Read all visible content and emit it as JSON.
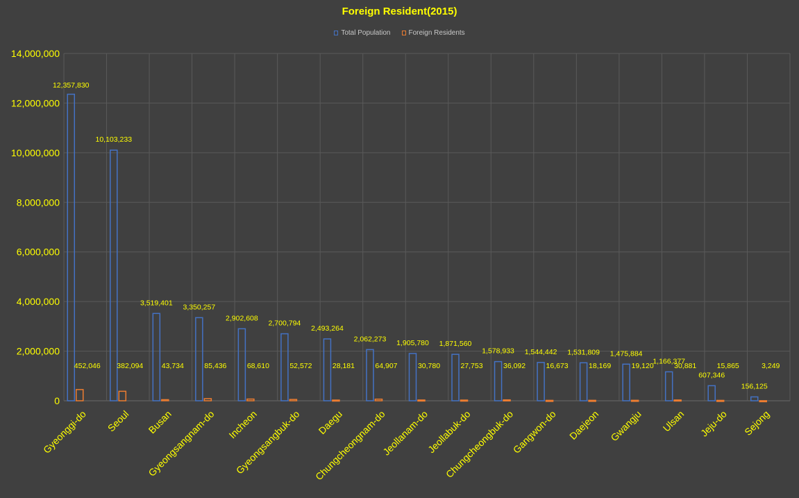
{
  "chart_data": {
    "type": "bar",
    "title": "Foreign Resident(2015)",
    "xlabel": "",
    "ylabel": "",
    "ylim": [
      0,
      14000000
    ],
    "yticks": [
      0,
      2000000,
      4000000,
      6000000,
      8000000,
      10000000,
      12000000,
      14000000
    ],
    "ytick_labels": [
      "0",
      "2,000,000",
      "4,000,000",
      "6,000,000",
      "8,000,000",
      "10,000,000",
      "12,000,000",
      "14,000,000"
    ],
    "grid": true,
    "legend_position": "top",
    "categories": [
      "Gyeonggi-do",
      "Seoul",
      "Busan",
      "Gyeongsangnam-do",
      "Incheon",
      "Gyeongsangbuk-do",
      "Daegu",
      "Chungcheongnam-do",
      "Jeollanam-do",
      "Jeollabuk-do",
      "Chungcheongbuk-do",
      "Gangwon-do",
      "Daejeon",
      "Gwangju",
      "Ulsan",
      "Jeju-do",
      "Sejong"
    ],
    "series": [
      {
        "name": "Total Population",
        "color": "#4472c4",
        "values": [
          12357830,
          10103233,
          3519401,
          3350257,
          2902608,
          2700794,
          2493264,
          2062273,
          1905780,
          1871560,
          1578933,
          1544442,
          1531809,
          1475884,
          1166377,
          607346,
          156125
        ],
        "labels": [
          "12,357,830",
          "10,103,233",
          "3,519,401",
          "3,350,257",
          "2,902,608",
          "2,700,794",
          "2,493,264",
          "2,062,273",
          "1,905,780",
          "1,871,560",
          "1,578,933",
          "1,544,442",
          "1,531,809",
          "1,475,884",
          "1,166,377",
          "607,346",
          "156,125"
        ]
      },
      {
        "name": "Foreign Residents",
        "color": "#ed7d31",
        "values": [
          452046,
          382094,
          43734,
          85436,
          68610,
          52572,
          28181,
          64907,
          30780,
          27753,
          36092,
          16673,
          18169,
          19120,
          30881,
          15865,
          3249
        ],
        "labels": [
          "452,046",
          "382,094",
          "43,734",
          "85,436",
          "68,610",
          "52,572",
          "28,181",
          "64,907",
          "30,780",
          "27,753",
          "36,092",
          "16,673",
          "18,169",
          "19,120",
          "30,881",
          "15,865",
          "3,249"
        ]
      }
    ]
  }
}
